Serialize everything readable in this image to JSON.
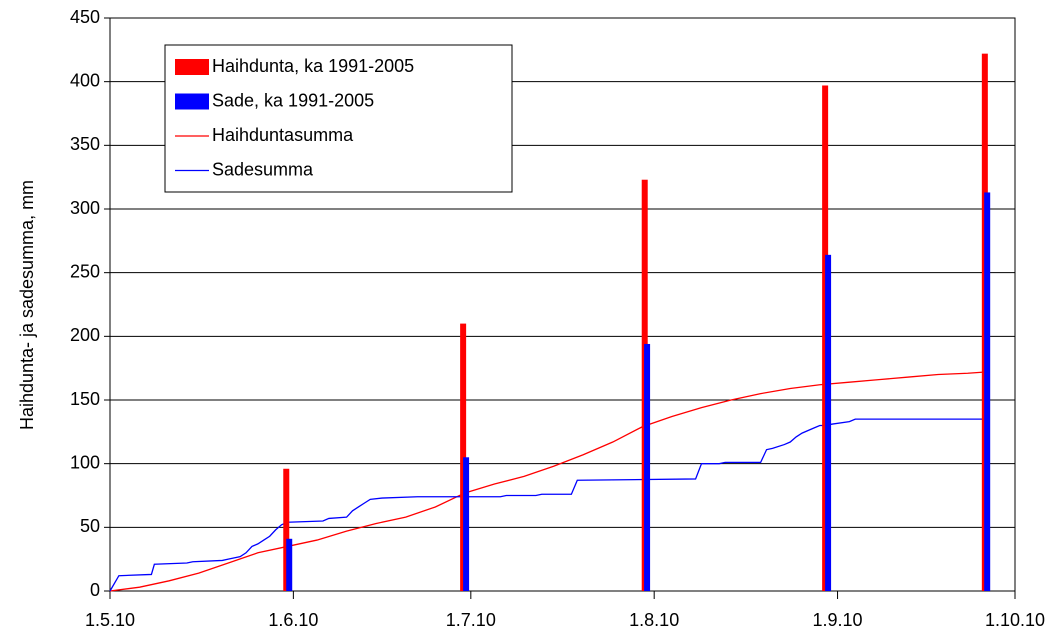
{
  "chart_data": {
    "type": "bar",
    "y_label": "Haihdunta- ja sadesumma, mm",
    "xlim": [
      0,
      153
    ],
    "xticks": [
      {
        "value": 0,
        "label": "1.5.10"
      },
      {
        "value": 31,
        "label": "1.6.10"
      },
      {
        "value": 61,
        "label": "1.7.10"
      },
      {
        "value": 92,
        "label": "1.8.10"
      },
      {
        "value": 123,
        "label": "1.9.10"
      },
      {
        "value": 153,
        "label": "1.10.10"
      }
    ],
    "ylim": [
      0,
      450
    ],
    "yticks": [
      0,
      50,
      100,
      150,
      200,
      250,
      300,
      350,
      400,
      450
    ],
    "grid": true,
    "legend": "top-left",
    "series": [
      {
        "name": "Haihdunta, ka 1991-2005",
        "type": "bar",
        "color": "#ff0000",
        "x": [
          29.8,
          59.7,
          90.4,
          120.9,
          147.9
        ],
        "values": [
          96,
          210,
          323,
          397,
          422
        ]
      },
      {
        "name": "Sade, ka 1991-2005",
        "type": "bar",
        "color": "#0000ff",
        "x": [
          30.3,
          60.2,
          90.8,
          121.4,
          148.3
        ],
        "values": [
          41,
          105,
          194,
          264,
          313
        ]
      },
      {
        "name": "Haihduntasumma",
        "type": "line",
        "color": "#ff0000",
        "x": [
          0,
          5,
          10,
          15,
          20,
          25,
          30,
          35,
          40,
          45,
          50,
          55,
          60,
          65,
          70,
          75,
          80,
          85,
          90,
          95,
          100,
          105,
          110,
          115,
          120,
          125,
          130,
          135,
          140,
          145,
          148
        ],
        "values": [
          0,
          3,
          8,
          14,
          22,
          30,
          35,
          40,
          47,
          53,
          58,
          66,
          77,
          84,
          90,
          98,
          107,
          117,
          129,
          137,
          144,
          150,
          155,
          159,
          162,
          164,
          166,
          168,
          170,
          171,
          172
        ]
      },
      {
        "name": "Sadesumma",
        "type": "line",
        "color": "#0000ff",
        "x": [
          0,
          1,
          1.5,
          7,
          7.5,
          13,
          14,
          19,
          20,
          22,
          23,
          24,
          25,
          26,
          27,
          28,
          29,
          30,
          36,
          37,
          40,
          41,
          42,
          43,
          44,
          46,
          52,
          60,
          66,
          67,
          72,
          73,
          78,
          79,
          99,
          100,
          103,
          104,
          110,
          111,
          112,
          114,
          115,
          116,
          117,
          119,
          120,
          121,
          122,
          125,
          126,
          148
        ],
        "values": [
          0,
          8,
          12,
          13,
          21,
          22,
          23,
          24,
          25,
          27,
          30,
          35,
          37,
          40,
          43,
          48,
          52,
          54,
          55,
          57,
          58,
          63,
          66,
          69,
          72,
          73,
          74,
          74,
          74,
          75,
          75,
          76,
          76,
          87,
          88,
          100,
          100,
          101,
          101,
          111,
          112,
          115,
          117,
          121,
          124,
          128,
          130,
          130,
          131,
          133,
          135,
          135
        ]
      }
    ]
  }
}
